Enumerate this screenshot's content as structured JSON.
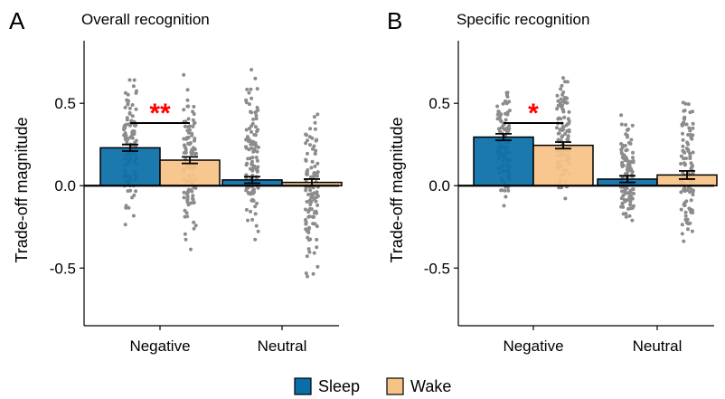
{
  "legend": {
    "items": [
      {
        "label": "Sleep",
        "color": "#0a6fa8"
      },
      {
        "label": "Wake",
        "color": "#f6c386"
      }
    ]
  },
  "chart_data": [
    {
      "type": "bar",
      "panel_letter": "A",
      "title": "Overall recognition",
      "ylabel": "Trade-off magnitude",
      "xlabel": "",
      "categories": [
        "Negative",
        "Neutral"
      ],
      "ylim": [
        -0.85,
        0.88
      ],
      "yticks": [
        -0.5,
        0.0,
        0.5
      ],
      "ytick_labels": [
        "-0.5",
        "0.0",
        "0.5"
      ],
      "series": [
        {
          "name": "Sleep",
          "values": [
            0.23,
            0.035
          ],
          "errors": [
            0.02,
            0.02
          ]
        },
        {
          "name": "Wake",
          "values": [
            0.155,
            0.02
          ],
          "errors": [
            0.02,
            0.02
          ]
        }
      ],
      "points_range": {
        "Negative": {
          "Sleep": [
            -0.38,
            0.85
          ],
          "Wake": [
            -0.45,
            0.72
          ]
        },
        "Neutral": {
          "Sleep": [
            -0.42,
            0.78
          ],
          "Wake": [
            -0.76,
            0.65
          ]
        }
      },
      "significance": {
        "category": "Negative",
        "label": "**",
        "y": 0.38
      }
    },
    {
      "type": "bar",
      "panel_letter": "B",
      "title": "Specific recognition",
      "ylabel": "Trade-off magnitude",
      "xlabel": "",
      "categories": [
        "Negative",
        "Neutral"
      ],
      "ylim": [
        -0.85,
        0.88
      ],
      "yticks": [
        -0.5,
        0.0,
        0.5
      ],
      "ytick_labels": [
        "-0.5",
        "0.0",
        "0.5"
      ],
      "series": [
        {
          "name": "Sleep",
          "values": [
            0.295,
            0.04
          ],
          "errors": [
            0.02,
            0.02
          ]
        },
        {
          "name": "Wake",
          "values": [
            0.245,
            0.065
          ],
          "errors": [
            0.02,
            0.025
          ]
        }
      ],
      "points_range": {
        "Negative": {
          "Sleep": [
            -0.21,
            0.72
          ],
          "Wake": [
            -0.29,
            0.78
          ]
        },
        "Neutral": {
          "Sleep": [
            -0.38,
            0.5
          ],
          "Wake": [
            -0.5,
            0.69
          ]
        }
      },
      "significance": {
        "category": "Negative",
        "label": "*",
        "y": 0.38
      }
    }
  ]
}
